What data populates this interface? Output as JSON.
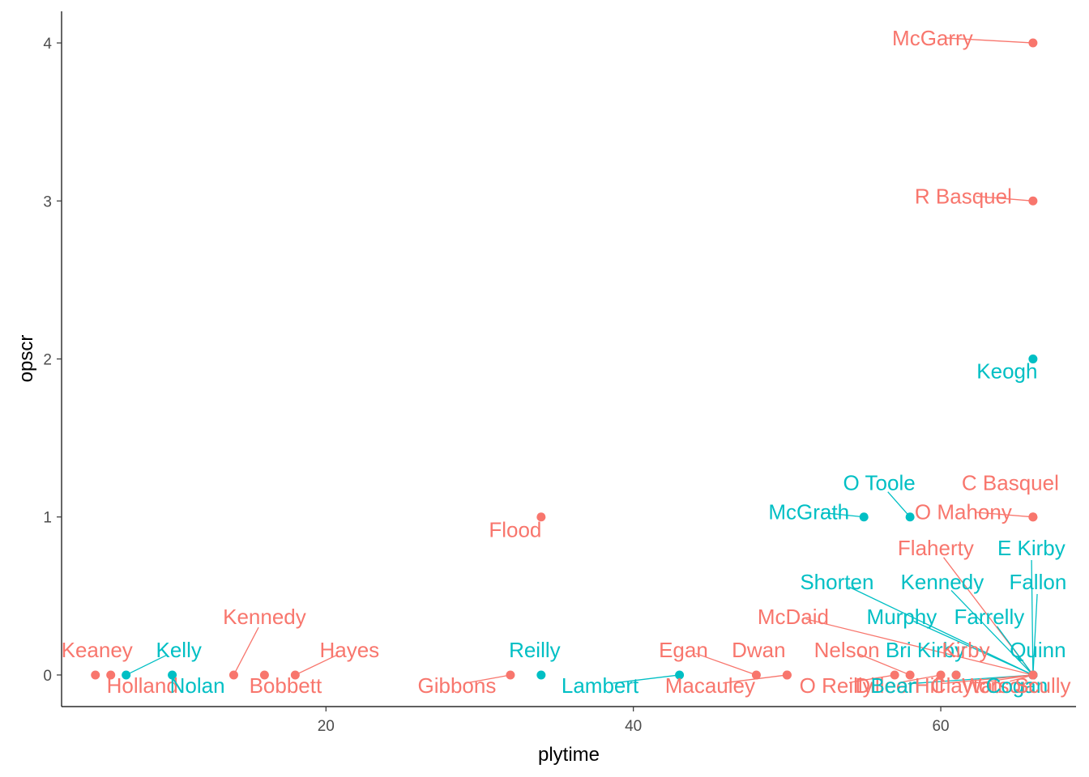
{
  "chart_data": {
    "type": "scatter",
    "title": "",
    "xlabel": "plytime",
    "ylabel": "opscr",
    "xlim": [
      2.8,
      68.8
    ],
    "ylim": [
      -0.2,
      4.2
    ],
    "x_ticks": [
      20,
      40,
      60
    ],
    "y_ticks": [
      0,
      1,
      2,
      3,
      4
    ],
    "grid": false,
    "legend": "none",
    "colors": {
      "group_a": "#F8766D",
      "group_b": "#00BFC4"
    },
    "points": [
      {
        "name": "McGarry",
        "x": 66,
        "y": 4,
        "group": "a"
      },
      {
        "name": "R Basquel",
        "x": 66,
        "y": 3,
        "group": "a"
      },
      {
        "name": "Keogh",
        "x": 66,
        "y": 2,
        "group": "b"
      },
      {
        "name": "C Basquel",
        "x": 66,
        "y": 1,
        "group": "a"
      },
      {
        "name": "O Mahony",
        "x": 66,
        "y": 1,
        "group": "a"
      },
      {
        "name": "O Toole",
        "x": 58,
        "y": 1,
        "group": "b"
      },
      {
        "name": "McGrath",
        "x": 55,
        "y": 1,
        "group": "b"
      },
      {
        "name": "Flood",
        "x": 34,
        "y": 1,
        "group": "a"
      },
      {
        "name": "Keaney",
        "x": 5,
        "y": 0,
        "group": "a"
      },
      {
        "name": "Holland",
        "x": 6,
        "y": 0,
        "group": "a"
      },
      {
        "name": "Kelly",
        "x": 7,
        "y": 0,
        "group": "b"
      },
      {
        "name": "Nolan",
        "x": 10,
        "y": 0,
        "group": "b"
      },
      {
        "name": "Kennedy",
        "x": 14,
        "y": 0,
        "group": "a"
      },
      {
        "name": "Bobbett",
        "x": 16,
        "y": 0,
        "group": "a"
      },
      {
        "name": "Hayes",
        "x": 18,
        "y": 0,
        "group": "a"
      },
      {
        "name": "Gibbons",
        "x": 32,
        "y": 0,
        "group": "a"
      },
      {
        "name": "Reilly",
        "x": 34,
        "y": 0,
        "group": "b"
      },
      {
        "name": "Lambert",
        "x": 43,
        "y": 0,
        "group": "b"
      },
      {
        "name": "Egan",
        "x": 48,
        "y": 0,
        "group": "a"
      },
      {
        "name": "Macauley",
        "x": 50,
        "y": 0,
        "group": "a"
      },
      {
        "name": "Dwan",
        "x": 50,
        "y": 0,
        "group": "a"
      },
      {
        "name": "O Reilly",
        "x": 57,
        "y": 0,
        "group": "a"
      },
      {
        "name": "Nelson",
        "x": 58,
        "y": 0,
        "group": "a"
      },
      {
        "name": "Dilleen",
        "x": 60,
        "y": 0,
        "group": "a"
      },
      {
        "name": "Bri Kirby",
        "x": 61,
        "y": 0,
        "group": "b"
      },
      {
        "name": "Kirby",
        "x": 61,
        "y": 0,
        "group": "a"
      },
      {
        "name": "Flaherty",
        "x": 66,
        "y": 0,
        "group": "a"
      },
      {
        "name": "E Kirby",
        "x": 66,
        "y": 0,
        "group": "b"
      },
      {
        "name": "Shorten",
        "x": 66,
        "y": 0,
        "group": "b"
      },
      {
        "name": "Kennedy",
        "x": 66,
        "y": 0,
        "group": "b"
      },
      {
        "name": "Fallon",
        "x": 66,
        "y": 0,
        "group": "b"
      },
      {
        "name": "McDaid",
        "x": 66,
        "y": 0,
        "group": "a"
      },
      {
        "name": "Murphy",
        "x": 66,
        "y": 0,
        "group": "b"
      },
      {
        "name": "Farrelly",
        "x": 66,
        "y": 0,
        "group": "b"
      },
      {
        "name": "Quinn",
        "x": 66,
        "y": 0,
        "group": "b"
      },
      {
        "name": "Bean",
        "x": 66,
        "y": 0,
        "group": "b"
      },
      {
        "name": "Hill",
        "x": 66,
        "y": 0,
        "group": "a"
      },
      {
        "name": "Clayton",
        "x": 66,
        "y": 0,
        "group": "a"
      },
      {
        "name": "Watson",
        "x": 66,
        "y": 0,
        "group": "a"
      },
      {
        "name": "Cogan",
        "x": 66,
        "y": 0,
        "group": "b"
      },
      {
        "name": "Scully",
        "x": 66,
        "y": 0,
        "group": "a"
      }
    ]
  }
}
